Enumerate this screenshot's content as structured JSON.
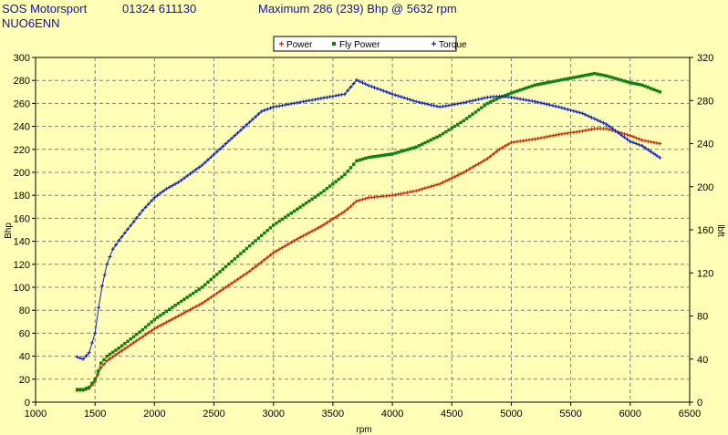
{
  "header": {
    "company": "SOS Motorsport",
    "phone": "01324 611130",
    "summary": "Maximum 286 (239) Bhp @ 5632 rpm",
    "vehicle": "NUO6ENN"
  },
  "colors": {
    "background": "#FFFFB8",
    "header_text": "#1010A0",
    "grid": "#808080",
    "power": "#CC2200",
    "fly_power": "#108010",
    "torque": "#1020C0"
  },
  "chart_data": {
    "type": "line",
    "x_label": "rpm",
    "y_label": "Bhp",
    "y2_label": "lbft",
    "x_range": [
      1000,
      6500
    ],
    "y_range": [
      0,
      300
    ],
    "y2_range": [
      0,
      320
    ],
    "x_ticks": [
      "1000",
      "1500",
      "2000",
      "2500",
      "3000",
      "3500",
      "4000",
      "4500",
      "5000",
      "5500",
      "6000",
      "6500"
    ],
    "y_ticks": [
      "0",
      "20",
      "40",
      "60",
      "80",
      "100",
      "120",
      "140",
      "160",
      "180",
      "200",
      "220",
      "240",
      "260",
      "280",
      "300"
    ],
    "y2_ticks": [
      "0",
      "40",
      "80",
      "120",
      "160",
      "200",
      "240",
      "280",
      "320"
    ],
    "grid": true,
    "legend_position": "top-center",
    "legend": [
      "Power",
      "Fly Power",
      "Torque"
    ],
    "series": [
      {
        "name": "Power",
        "axis": "left",
        "x": [
          1350,
          1400,
          1450,
          1500,
          1550,
          1600,
          1700,
          1800,
          1900,
          2000,
          2200,
          2400,
          2600,
          2800,
          3000,
          3200,
          3400,
          3600,
          3700,
          3800,
          4000,
          4200,
          4400,
          4600,
          4800,
          4900,
          5000,
          5200,
          5400,
          5600,
          5700,
          5800,
          6000,
          6100,
          6250
        ],
        "y": [
          10,
          10,
          12,
          18,
          30,
          36,
          43,
          50,
          57,
          64,
          75,
          86,
          100,
          114,
          130,
          142,
          153,
          166,
          175,
          178,
          180,
          184,
          190,
          200,
          212,
          220,
          226,
          229,
          233,
          236,
          238,
          238,
          232,
          228,
          225
        ]
      },
      {
        "name": "Fly Power",
        "axis": "left",
        "x": [
          1350,
          1400,
          1450,
          1500,
          1550,
          1600,
          1700,
          1800,
          1900,
          2000,
          2200,
          2400,
          2600,
          2800,
          3000,
          3200,
          3400,
          3600,
          3700,
          3800,
          4000,
          4200,
          4400,
          4600,
          4800,
          4900,
          5000,
          5200,
          5400,
          5600,
          5700,
          5800,
          6000,
          6100,
          6250
        ],
        "y": [
          11,
          11,
          13,
          20,
          34,
          40,
          47,
          55,
          63,
          72,
          86,
          100,
          118,
          136,
          154,
          168,
          182,
          198,
          210,
          213,
          216,
          222,
          232,
          245,
          260,
          265,
          269,
          276,
          280,
          284,
          286,
          284,
          278,
          276,
          270
        ]
      },
      {
        "name": "Torque",
        "axis": "right",
        "x": [
          1350,
          1400,
          1450,
          1500,
          1530,
          1560,
          1600,
          1650,
          1700,
          1800,
          1900,
          2000,
          2100,
          2200,
          2400,
          2600,
          2800,
          2900,
          3000,
          3200,
          3400,
          3600,
          3700,
          3800,
          4000,
          4200,
          4400,
          4600,
          4800,
          4900,
          5000,
          5200,
          5400,
          5600,
          5800,
          6000,
          6100,
          6250
        ],
        "y": [
          42,
          40,
          46,
          64,
          88,
          108,
          128,
          142,
          150,
          164,
          178,
          190,
          198,
          204,
          220,
          240,
          260,
          270,
          274,
          278,
          282,
          286,
          299,
          294,
          286,
          279,
          274,
          278,
          283,
          284,
          283,
          279,
          274,
          268,
          258,
          242,
          238,
          227
        ]
      }
    ]
  }
}
